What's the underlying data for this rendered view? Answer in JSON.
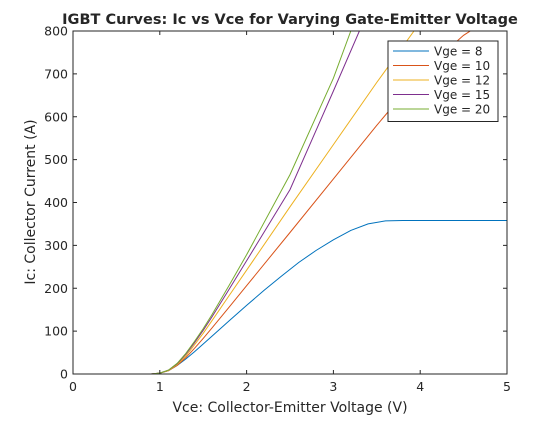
{
  "chart_data": {
    "type": "line",
    "title": "IGBT Curves: Ic vs Vce for Varying Gate-Emitter Voltage",
    "xlabel": "Vce: Collector-Emitter Voltage (V)",
    "ylabel": "Ic: Collector Current (A)",
    "xlim": [
      0,
      5
    ],
    "ylim": [
      0,
      800
    ],
    "xticks": [
      0,
      1,
      2,
      3,
      4,
      5
    ],
    "yticks": [
      0,
      100,
      200,
      300,
      400,
      500,
      600,
      700,
      800
    ],
    "grid": false,
    "legend_position": "top-right",
    "series": [
      {
        "name": "Vge = 8",
        "color": "#0072BD",
        "x": [
          0.2,
          0.5,
          0.9,
          1.0,
          1.1,
          1.2,
          1.3,
          1.4,
          1.5,
          1.6,
          1.8,
          2.0,
          2.2,
          2.4,
          2.6,
          2.8,
          3.0,
          3.2,
          3.4,
          3.6,
          3.8,
          4.0,
          5.0
        ],
        "y": [
          0,
          0,
          0,
          2,
          8,
          20,
          35,
          52,
          70,
          88,
          124,
          160,
          195,
          228,
          260,
          288,
          313,
          335,
          350,
          357,
          358,
          358,
          358
        ]
      },
      {
        "name": "Vge = 10",
        "color": "#D95319",
        "x": [
          0.2,
          0.5,
          0.9,
          1.0,
          1.1,
          1.2,
          1.3,
          1.4,
          1.5,
          1.6,
          1.8,
          2.0,
          2.5,
          3.0,
          3.5,
          4.0,
          4.5,
          5.0
        ],
        "y": [
          0,
          0,
          0,
          2,
          8,
          20,
          38,
          60,
          83,
          107,
          156,
          206,
          330,
          455,
          580,
          700,
          790,
          855
        ]
      },
      {
        "name": "Vge = 12",
        "color": "#EDB120",
        "x": [
          0.2,
          0.5,
          0.9,
          1.0,
          1.1,
          1.2,
          1.3,
          1.4,
          1.5,
          1.6,
          1.8,
          2.0,
          2.5,
          3.0,
          3.5,
          4.0
        ],
        "y": [
          0,
          0,
          0,
          2,
          8,
          22,
          42,
          68,
          95,
          124,
          183,
          242,
          390,
          535,
          680,
          820
        ]
      },
      {
        "name": "Vge = 15",
        "color": "#7E2F8E",
        "x": [
          0.2,
          0.5,
          0.9,
          1.0,
          1.1,
          1.2,
          1.3,
          1.4,
          1.5,
          1.6,
          1.8,
          2.0,
          2.5,
          3.0,
          3.3
        ],
        "y": [
          0,
          0,
          0,
          2,
          9,
          24,
          46,
          73,
          102,
          133,
          198,
          264,
          430,
          660,
          800
        ]
      },
      {
        "name": "Vge = 20",
        "color": "#77AC30",
        "x": [
          0.2,
          0.5,
          0.9,
          1.0,
          1.1,
          1.2,
          1.3,
          1.4,
          1.5,
          1.6,
          1.8,
          2.0,
          2.5,
          3.0,
          3.2
        ],
        "y": [
          0,
          0,
          0,
          2,
          9,
          25,
          48,
          76,
          106,
          138,
          207,
          278,
          465,
          690,
          800
        ]
      }
    ]
  }
}
